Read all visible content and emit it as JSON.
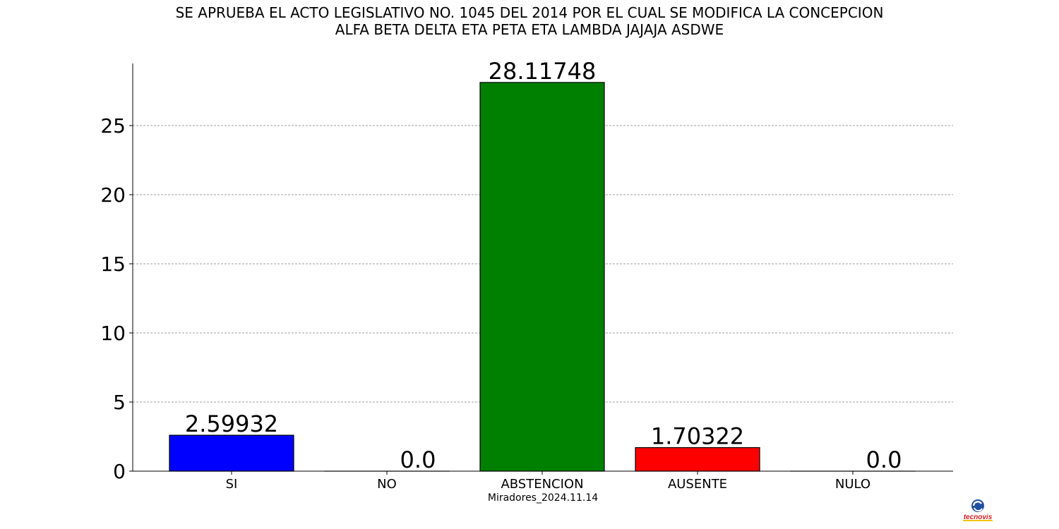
{
  "chart_data": {
    "type": "bar",
    "title_lines": [
      "SE APRUEBA EL ACTO LEGISLATIVO NO. 1045 DEL 2014 POR EL CUAL SE MODIFICA LA CONCEPCION",
      "ALFA BETA DELTA ETA PETA ETA LAMBDA JAJAJA ASDWE"
    ],
    "xlabel": "Miradores_2024.11.14",
    "ylabel": "",
    "categories": [
      "SI",
      "NO",
      "ABSTENCION",
      "AUSENTE",
      "NULO"
    ],
    "values": [
      2.59932,
      0.0,
      28.11748,
      1.70322,
      0.0
    ],
    "value_labels": [
      "2.59932",
      "0.0",
      "28.11748",
      "1.70322",
      "0.0"
    ],
    "colors": [
      "#0000ff",
      "#0000ff",
      "#008000",
      "#ff0000",
      "#ffa500"
    ],
    "ylim": [
      0,
      29.5
    ],
    "yticks": [
      0,
      5,
      10,
      15,
      20,
      25
    ],
    "grid": "horizontal-dashed",
    "legend": "none"
  },
  "logo": {
    "text": "tecnovis",
    "colors": {
      "globe": "#1f4fa0",
      "text": "#d81f26",
      "accent": "#f2c200"
    }
  }
}
